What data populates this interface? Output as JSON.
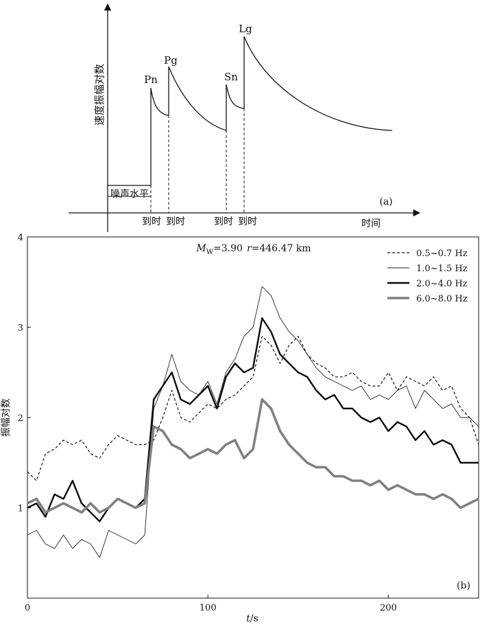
{
  "chart_data": [
    {
      "type": "line",
      "panel_label": "(a)",
      "ylabel": "速度振幅对数",
      "xlabel": "时间",
      "noise_label": "噪声水平",
      "phases": [
        "Pn",
        "Pg",
        "Sn",
        "Lg"
      ],
      "arrival_label": "到时",
      "grid": false
    },
    {
      "type": "line",
      "panel_label": "(b)",
      "annotation": {
        "mw_symbol": "M",
        "mw_sub": "W",
        "mw_value": "=3.90",
        "r_symbol": "r",
        "r_value": "=446.47 km"
      },
      "xlabel_italic": "t",
      "xlabel_unit": "/s",
      "ylabel": "振幅对数",
      "xlim": [
        0,
        250
      ],
      "ylim": [
        0,
        4
      ],
      "xticks": [
        0,
        100,
        200
      ],
      "yticks": [
        1,
        2,
        3,
        4
      ],
      "grid": false,
      "legend_position": "top-right",
      "series": [
        {
          "name": "0.5~0.7 Hz",
          "style": "dashed",
          "color": "#111111",
          "x": [
            0,
            5,
            10,
            15,
            20,
            25,
            30,
            35,
            40,
            45,
            50,
            55,
            60,
            65,
            70,
            75,
            80,
            85,
            90,
            95,
            100,
            105,
            110,
            115,
            120,
            125,
            130,
            135,
            140,
            145,
            150,
            155,
            160,
            165,
            170,
            175,
            180,
            185,
            190,
            195,
            200,
            205,
            210,
            215,
            220,
            225,
            230,
            235,
            240,
            245,
            250
          ],
          "y": [
            1.4,
            1.3,
            1.6,
            1.65,
            1.75,
            1.7,
            1.75,
            1.6,
            1.55,
            1.7,
            1.8,
            1.75,
            1.7,
            1.7,
            1.75,
            2.0,
            2.3,
            2.0,
            1.95,
            2.05,
            2.15,
            2.1,
            2.2,
            2.25,
            2.35,
            2.45,
            2.9,
            2.8,
            2.6,
            2.8,
            2.9,
            2.7,
            2.6,
            2.55,
            2.45,
            2.45,
            2.5,
            2.4,
            2.35,
            2.35,
            2.5,
            2.3,
            2.45,
            2.4,
            2.35,
            2.45,
            2.3,
            2.35,
            2.1,
            2.0,
            1.7
          ]
        },
        {
          "name": "1.0~1.5 Hz",
          "style": "thin",
          "color": "#222222",
          "x": [
            0,
            5,
            10,
            15,
            20,
            25,
            30,
            35,
            40,
            45,
            50,
            55,
            60,
            65,
            70,
            75,
            80,
            85,
            90,
            95,
            100,
            105,
            110,
            115,
            120,
            125,
            130,
            135,
            140,
            145,
            150,
            155,
            160,
            165,
            170,
            175,
            180,
            185,
            190,
            195,
            200,
            205,
            210,
            215,
            220,
            225,
            230,
            235,
            240,
            245,
            250
          ],
          "y": [
            0.7,
            0.75,
            0.6,
            0.55,
            0.7,
            0.55,
            0.65,
            0.6,
            0.45,
            0.75,
            0.7,
            0.65,
            0.6,
            0.7,
            2.1,
            2.35,
            2.7,
            2.4,
            2.3,
            2.25,
            2.4,
            2.15,
            2.5,
            2.65,
            2.9,
            3.0,
            3.45,
            3.35,
            3.1,
            2.95,
            2.85,
            2.7,
            2.55,
            2.45,
            2.4,
            2.35,
            2.3,
            2.35,
            2.2,
            2.25,
            2.2,
            2.3,
            2.35,
            2.1,
            2.3,
            2.2,
            2.1,
            2.15,
            2.0,
            2.0,
            1.9
          ]
        },
        {
          "name": "2.0~4.0 Hz",
          "style": "thick",
          "color": "#0a0a0a",
          "x": [
            0,
            5,
            10,
            15,
            20,
            25,
            30,
            35,
            40,
            45,
            50,
            55,
            60,
            65,
            70,
            75,
            80,
            85,
            90,
            95,
            100,
            105,
            110,
            115,
            120,
            125,
            130,
            135,
            140,
            145,
            150,
            155,
            160,
            165,
            170,
            175,
            180,
            185,
            190,
            195,
            200,
            205,
            210,
            215,
            220,
            225,
            230,
            235,
            240,
            245,
            250
          ],
          "y": [
            1.0,
            1.05,
            0.9,
            1.15,
            1.1,
            1.3,
            1.05,
            0.95,
            0.85,
            1.0,
            1.1,
            1.05,
            1.0,
            1.1,
            2.2,
            2.35,
            2.5,
            2.2,
            2.15,
            2.25,
            2.35,
            2.1,
            2.45,
            2.6,
            2.5,
            2.55,
            3.1,
            2.95,
            2.7,
            2.6,
            2.5,
            2.45,
            2.3,
            2.2,
            2.25,
            2.1,
            2.1,
            2.0,
            1.95,
            2.0,
            1.85,
            1.95,
            1.9,
            1.75,
            1.85,
            1.7,
            1.75,
            1.7,
            1.5,
            1.5,
            1.5
          ]
        },
        {
          "name": "6.0~8.0 Hz",
          "style": "thick-gray",
          "color": "#808080",
          "x": [
            0,
            5,
            10,
            15,
            20,
            25,
            30,
            35,
            40,
            45,
            50,
            55,
            60,
            65,
            70,
            75,
            80,
            85,
            90,
            95,
            100,
            105,
            110,
            115,
            120,
            125,
            130,
            135,
            140,
            145,
            150,
            155,
            160,
            165,
            170,
            175,
            180,
            185,
            190,
            195,
            200,
            205,
            210,
            215,
            220,
            225,
            230,
            235,
            240,
            245,
            250
          ],
          "y": [
            1.05,
            1.1,
            0.95,
            1.0,
            1.05,
            1.0,
            0.95,
            1.05,
            0.95,
            1.0,
            1.1,
            1.05,
            1.0,
            1.05,
            1.9,
            1.85,
            1.7,
            1.65,
            1.55,
            1.6,
            1.65,
            1.6,
            1.7,
            1.75,
            1.55,
            1.65,
            2.2,
            2.1,
            1.85,
            1.7,
            1.6,
            1.5,
            1.45,
            1.45,
            1.35,
            1.35,
            1.3,
            1.3,
            1.25,
            1.3,
            1.2,
            1.25,
            1.2,
            1.15,
            1.15,
            1.1,
            1.15,
            1.1,
            1.0,
            1.05,
            1.1
          ]
        }
      ]
    }
  ]
}
